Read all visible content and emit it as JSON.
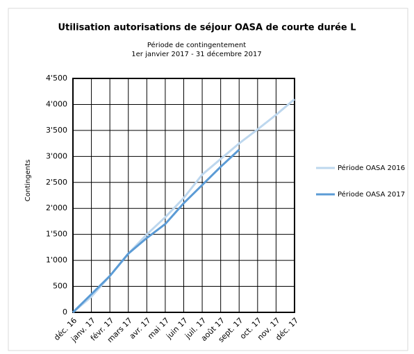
{
  "chart_data": {
    "type": "line",
    "title": "Utilisation autorisations de séjour OASA de courte durée L",
    "subtitle": [
      "Période de contingentement",
      "1er janvier 2017 - 31 décembre 2017"
    ],
    "y_label": "Contingents",
    "categories": [
      "déc. 16",
      "janv. 17",
      "févr. 17",
      "mars 17",
      "avr. 17",
      "mai 17",
      "juin 17",
      "juil. 17",
      "août 17",
      "sept. 17",
      "oct. 17",
      "nov. 17",
      "déc. 17"
    ],
    "series": [
      {
        "name": "Période OASA 2016",
        "color": "#bdd7ee",
        "values": [
          0,
          300,
          700,
          1130,
          1500,
          1830,
          2200,
          2650,
          2950,
          3250,
          3520,
          3800,
          4100
        ]
      },
      {
        "name": "Période OASA 2017",
        "color": "#5b9bd5",
        "values": [
          0,
          350,
          700,
          1130,
          1430,
          1700,
          2100,
          2450,
          2800,
          3130,
          null,
          null,
          null
        ]
      }
    ],
    "ylim": [
      0,
      4500
    ],
    "yticks": [
      0,
      500,
      {
        "value": 1000,
        "label": "1'000"
      },
      {
        "value": 1500,
        "label": "1'500"
      },
      {
        "value": 2000,
        "label": "2'000"
      },
      {
        "value": 2500,
        "label": "2'500"
      },
      {
        "value": 3000,
        "label": "3'000"
      },
      {
        "value": 3500,
        "label": "3'500"
      },
      {
        "value": 4000,
        "label": "4'000"
      },
      {
        "value": 4500,
        "label": "4'500"
      }
    ],
    "grid": true,
    "legend": "right"
  }
}
